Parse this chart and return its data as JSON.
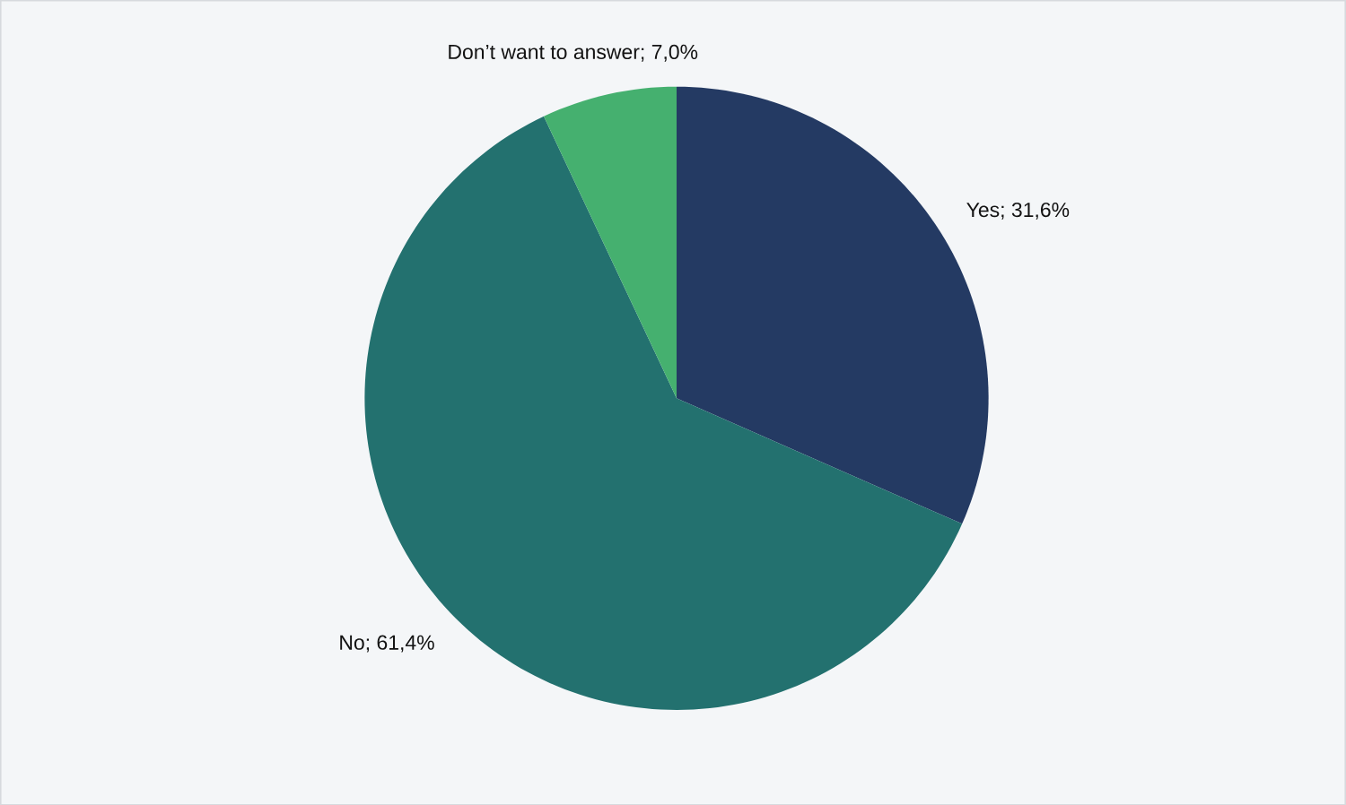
{
  "chart_data": {
    "type": "pie",
    "categories": [
      "Yes; 31,6%",
      "No; 61,4%",
      "Don’t want to answer; 7,0%"
    ],
    "values": [
      31.6,
      61.4,
      7.0
    ],
    "colors": [
      "#243a63",
      "#23716f",
      "#45b06f"
    ]
  }
}
